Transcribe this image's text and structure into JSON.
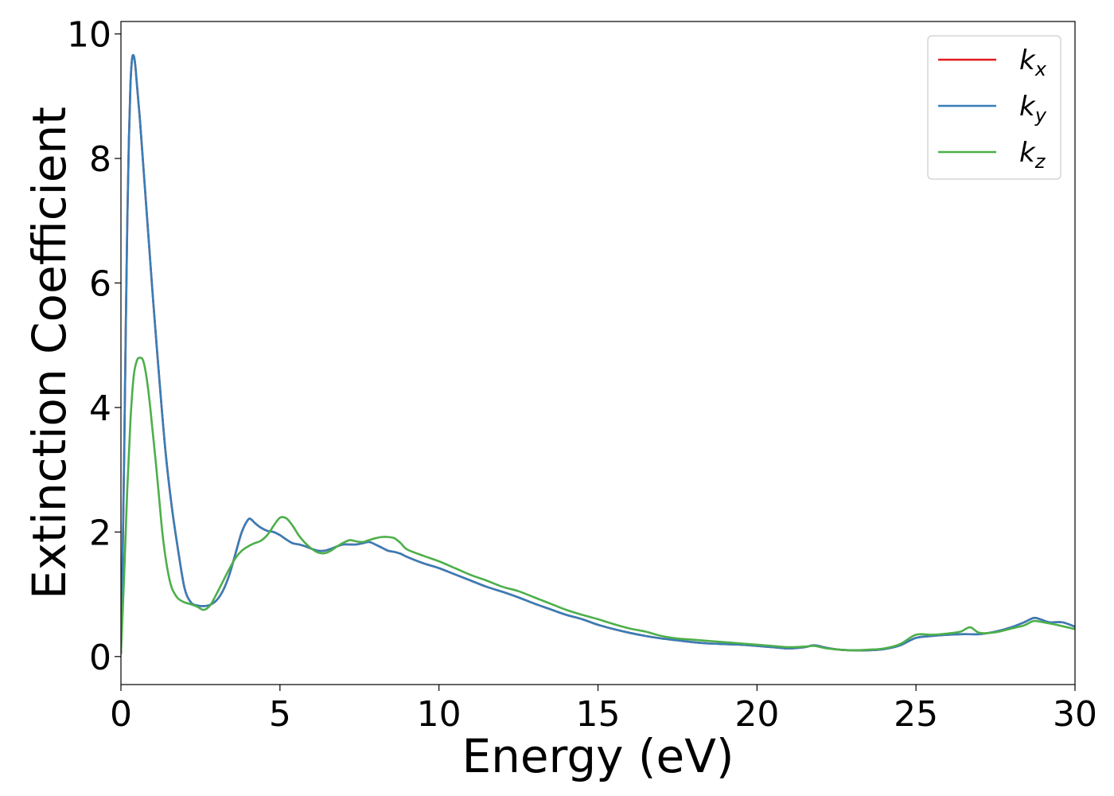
{
  "chart_data": {
    "type": "line",
    "title": "",
    "xlabel": "Energy (eV)",
    "ylabel": "Extinction Coefficient",
    "xlim": [
      0,
      30
    ],
    "ylim": [
      -0.45,
      10.2
    ],
    "xticks": [
      0,
      5,
      10,
      15,
      20,
      25,
      30
    ],
    "yticks": [
      0,
      2,
      4,
      6,
      8,
      10
    ],
    "grid": false,
    "legend_position": "top-right",
    "series": [
      {
        "name": "k_x",
        "symbol": "k",
        "subscript": "x",
        "color": "#e41a1c",
        "x": [
          0,
          0.05,
          0.1,
          0.15,
          0.2,
          0.25,
          0.3,
          0.35,
          0.4,
          0.45,
          0.5,
          0.6,
          0.7,
          0.8,
          0.9,
          1.0,
          1.2,
          1.4,
          1.6,
          1.8,
          2.0,
          2.2,
          2.4,
          2.6,
          2.8,
          3.0,
          3.2,
          3.4,
          3.6,
          3.8,
          4.0,
          4.1,
          4.2,
          4.4,
          4.6,
          4.8,
          5.0,
          5.2,
          5.4,
          5.6,
          5.8,
          6.0,
          6.2,
          6.4,
          6.6,
          6.8,
          7.0,
          7.2,
          7.4,
          7.6,
          7.8,
          8.0,
          8.2,
          8.4,
          8.6,
          8.8,
          9.0,
          9.5,
          10.0,
          10.5,
          11.0,
          11.5,
          12.0,
          12.5,
          13.0,
          13.5,
          14.0,
          14.5,
          15.0,
          15.5,
          16.0,
          16.5,
          17.0,
          17.5,
          18.0,
          18.5,
          19.0,
          19.5,
          20.0,
          20.5,
          21.0,
          21.5,
          21.8,
          22.2,
          22.6,
          23.0,
          23.5,
          24.0,
          24.5,
          25.0,
          25.5,
          26.0,
          26.5,
          27.0,
          27.5,
          28.0,
          28.4,
          28.7,
          28.9,
          29.2,
          29.6,
          30.0
        ],
        "values": [
          0.05,
          1.5,
          3.2,
          5.2,
          7.0,
          8.3,
          9.2,
          9.6,
          9.65,
          9.5,
          9.2,
          8.6,
          7.9,
          7.2,
          6.5,
          5.8,
          4.5,
          3.3,
          2.4,
          1.7,
          1.1,
          0.87,
          0.82,
          0.81,
          0.83,
          0.9,
          1.05,
          1.3,
          1.65,
          2.0,
          2.2,
          2.2,
          2.15,
          2.07,
          2.02,
          2.0,
          1.95,
          1.88,
          1.82,
          1.8,
          1.77,
          1.73,
          1.7,
          1.7,
          1.73,
          1.77,
          1.8,
          1.8,
          1.8,
          1.82,
          1.84,
          1.8,
          1.75,
          1.7,
          1.68,
          1.65,
          1.6,
          1.5,
          1.42,
          1.32,
          1.22,
          1.12,
          1.04,
          0.95,
          0.85,
          0.76,
          0.67,
          0.6,
          0.51,
          0.44,
          0.38,
          0.33,
          0.29,
          0.26,
          0.23,
          0.21,
          0.2,
          0.19,
          0.17,
          0.15,
          0.13,
          0.15,
          0.18,
          0.14,
          0.11,
          0.1,
          0.1,
          0.12,
          0.18,
          0.3,
          0.33,
          0.35,
          0.36,
          0.36,
          0.4,
          0.47,
          0.55,
          0.62,
          0.6,
          0.55,
          0.55,
          0.48
        ]
      },
      {
        "name": "k_y",
        "symbol": "k",
        "subscript": "y",
        "color": "#377eb8",
        "x": [
          0,
          0.05,
          0.1,
          0.15,
          0.2,
          0.25,
          0.3,
          0.35,
          0.4,
          0.45,
          0.5,
          0.6,
          0.7,
          0.8,
          0.9,
          1.0,
          1.2,
          1.4,
          1.6,
          1.8,
          2.0,
          2.2,
          2.4,
          2.6,
          2.8,
          3.0,
          3.2,
          3.4,
          3.6,
          3.8,
          4.0,
          4.1,
          4.2,
          4.4,
          4.6,
          4.8,
          5.0,
          5.2,
          5.4,
          5.6,
          5.8,
          6.0,
          6.2,
          6.4,
          6.6,
          6.8,
          7.0,
          7.2,
          7.4,
          7.6,
          7.8,
          8.0,
          8.2,
          8.4,
          8.6,
          8.8,
          9.0,
          9.5,
          10.0,
          10.5,
          11.0,
          11.5,
          12.0,
          12.5,
          13.0,
          13.5,
          14.0,
          14.5,
          15.0,
          15.5,
          16.0,
          16.5,
          17.0,
          17.5,
          18.0,
          18.5,
          19.0,
          19.5,
          20.0,
          20.5,
          21.0,
          21.5,
          21.8,
          22.2,
          22.6,
          23.0,
          23.5,
          24.0,
          24.5,
          25.0,
          25.5,
          26.0,
          26.5,
          27.0,
          27.5,
          28.0,
          28.4,
          28.7,
          28.9,
          29.2,
          29.6,
          30.0
        ],
        "values": [
          0.05,
          1.5,
          3.2,
          5.2,
          7.0,
          8.3,
          9.2,
          9.6,
          9.65,
          9.5,
          9.2,
          8.6,
          7.9,
          7.2,
          6.5,
          5.8,
          4.5,
          3.3,
          2.4,
          1.7,
          1.1,
          0.87,
          0.82,
          0.81,
          0.83,
          0.9,
          1.05,
          1.3,
          1.65,
          2.0,
          2.2,
          2.2,
          2.15,
          2.07,
          2.02,
          2.0,
          1.95,
          1.88,
          1.82,
          1.8,
          1.77,
          1.73,
          1.7,
          1.7,
          1.73,
          1.77,
          1.8,
          1.8,
          1.8,
          1.82,
          1.84,
          1.8,
          1.75,
          1.7,
          1.68,
          1.65,
          1.6,
          1.5,
          1.42,
          1.32,
          1.22,
          1.12,
          1.04,
          0.95,
          0.85,
          0.76,
          0.67,
          0.6,
          0.51,
          0.44,
          0.38,
          0.33,
          0.29,
          0.26,
          0.23,
          0.21,
          0.2,
          0.19,
          0.17,
          0.15,
          0.13,
          0.15,
          0.18,
          0.14,
          0.11,
          0.1,
          0.1,
          0.12,
          0.18,
          0.3,
          0.33,
          0.35,
          0.36,
          0.36,
          0.4,
          0.47,
          0.55,
          0.62,
          0.6,
          0.55,
          0.55,
          0.48
        ]
      },
      {
        "name": "k_z",
        "symbol": "k",
        "subscript": "z",
        "color": "#4daf4a",
        "x": [
          0,
          0.1,
          0.2,
          0.3,
          0.4,
          0.5,
          0.6,
          0.7,
          0.8,
          0.9,
          1.0,
          1.1,
          1.2,
          1.3,
          1.4,
          1.5,
          1.6,
          1.7,
          1.8,
          2.0,
          2.2,
          2.4,
          2.6,
          2.8,
          3.0,
          3.2,
          3.4,
          3.6,
          3.8,
          4.0,
          4.2,
          4.4,
          4.6,
          4.8,
          5.0,
          5.2,
          5.4,
          5.6,
          5.8,
          6.0,
          6.2,
          6.4,
          6.6,
          6.8,
          7.0,
          7.2,
          7.4,
          7.6,
          7.8,
          8.0,
          8.2,
          8.4,
          8.6,
          8.8,
          9.0,
          9.5,
          10.0,
          10.5,
          11.0,
          11.5,
          12.0,
          12.5,
          13.0,
          13.5,
          14.0,
          14.5,
          15.0,
          15.5,
          16.0,
          16.5,
          17.0,
          17.5,
          18.0,
          18.5,
          19.0,
          19.5,
          20.0,
          20.5,
          21.0,
          21.5,
          21.8,
          22.2,
          22.6,
          23.0,
          23.5,
          24.0,
          24.5,
          25.0,
          25.5,
          26.0,
          26.4,
          26.7,
          27.0,
          27.5,
          28.0,
          28.4,
          28.7,
          29.0,
          29.5,
          30.0
        ],
        "values": [
          0.05,
          1.3,
          2.7,
          3.8,
          4.5,
          4.75,
          4.8,
          4.75,
          4.5,
          4.1,
          3.6,
          3.1,
          2.55,
          2.0,
          1.6,
          1.3,
          1.1,
          1.0,
          0.93,
          0.87,
          0.84,
          0.8,
          0.75,
          0.82,
          1.0,
          1.2,
          1.4,
          1.58,
          1.7,
          1.77,
          1.82,
          1.86,
          1.95,
          2.1,
          2.23,
          2.22,
          2.1,
          1.94,
          1.82,
          1.73,
          1.67,
          1.66,
          1.7,
          1.77,
          1.83,
          1.87,
          1.85,
          1.84,
          1.87,
          1.9,
          1.92,
          1.92,
          1.9,
          1.82,
          1.72,
          1.62,
          1.53,
          1.42,
          1.31,
          1.22,
          1.12,
          1.05,
          0.95,
          0.85,
          0.75,
          0.67,
          0.6,
          0.52,
          0.45,
          0.4,
          0.33,
          0.29,
          0.27,
          0.25,
          0.23,
          0.21,
          0.19,
          0.17,
          0.15,
          0.16,
          0.17,
          0.13,
          0.11,
          0.1,
          0.11,
          0.13,
          0.2,
          0.35,
          0.35,
          0.37,
          0.4,
          0.47,
          0.38,
          0.39,
          0.45,
          0.5,
          0.57,
          0.55,
          0.5,
          0.44
        ]
      }
    ]
  }
}
